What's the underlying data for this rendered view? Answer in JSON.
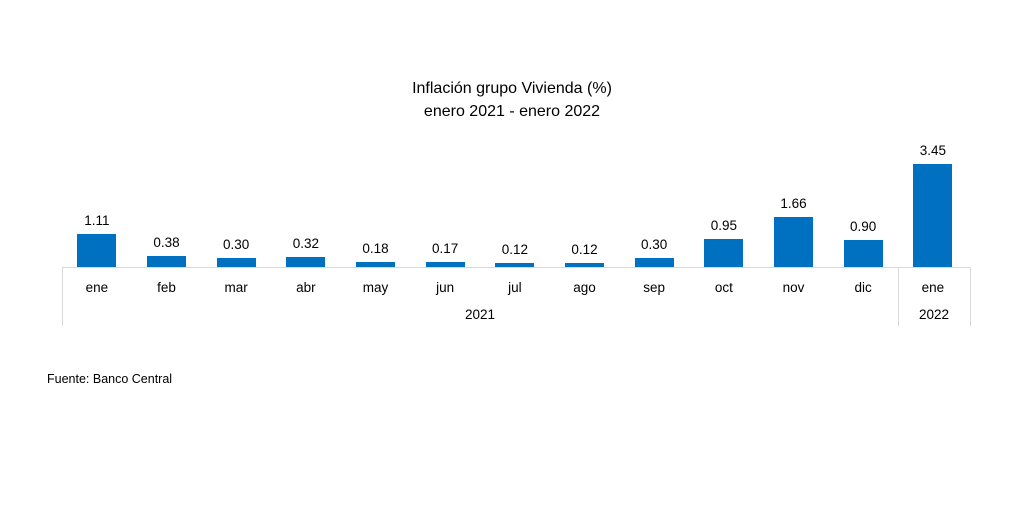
{
  "title": {
    "line1": "Inflación grupo Vivienda (%)",
    "line2": "enero 2021 - enero 2022"
  },
  "source": "Fuente: Banco Central",
  "chart_data": {
    "type": "bar",
    "title": "Inflación grupo Vivienda (%)",
    "subtitle": "enero 2021 - enero 2022",
    "categories": [
      "ene",
      "feb",
      "mar",
      "abr",
      "may",
      "jun",
      "jul",
      "ago",
      "sep",
      "oct",
      "nov",
      "dic",
      "ene"
    ],
    "values": [
      1.11,
      0.38,
      0.3,
      0.32,
      0.18,
      0.17,
      0.12,
      0.12,
      0.3,
      0.95,
      1.66,
      0.9,
      3.45
    ],
    "data_labels": [
      "1.11",
      "0.38",
      "0.30",
      "0.32",
      "0.18",
      "0.17",
      "0.12",
      "0.12",
      "0.30",
      "0.95",
      "1.66",
      "0.90",
      "3.45"
    ],
    "groups": [
      {
        "label": "2021",
        "first_index": 0,
        "last_index": 11
      },
      {
        "label": "2022",
        "first_index": 12,
        "last_index": 12
      }
    ],
    "xlabel": "",
    "ylabel": "",
    "ylim": [
      0,
      3.6
    ],
    "grid": false,
    "legend": "none",
    "bar_color": "#0070C0",
    "axis_color": "#D9D9D9",
    "text_color": "#000000"
  }
}
